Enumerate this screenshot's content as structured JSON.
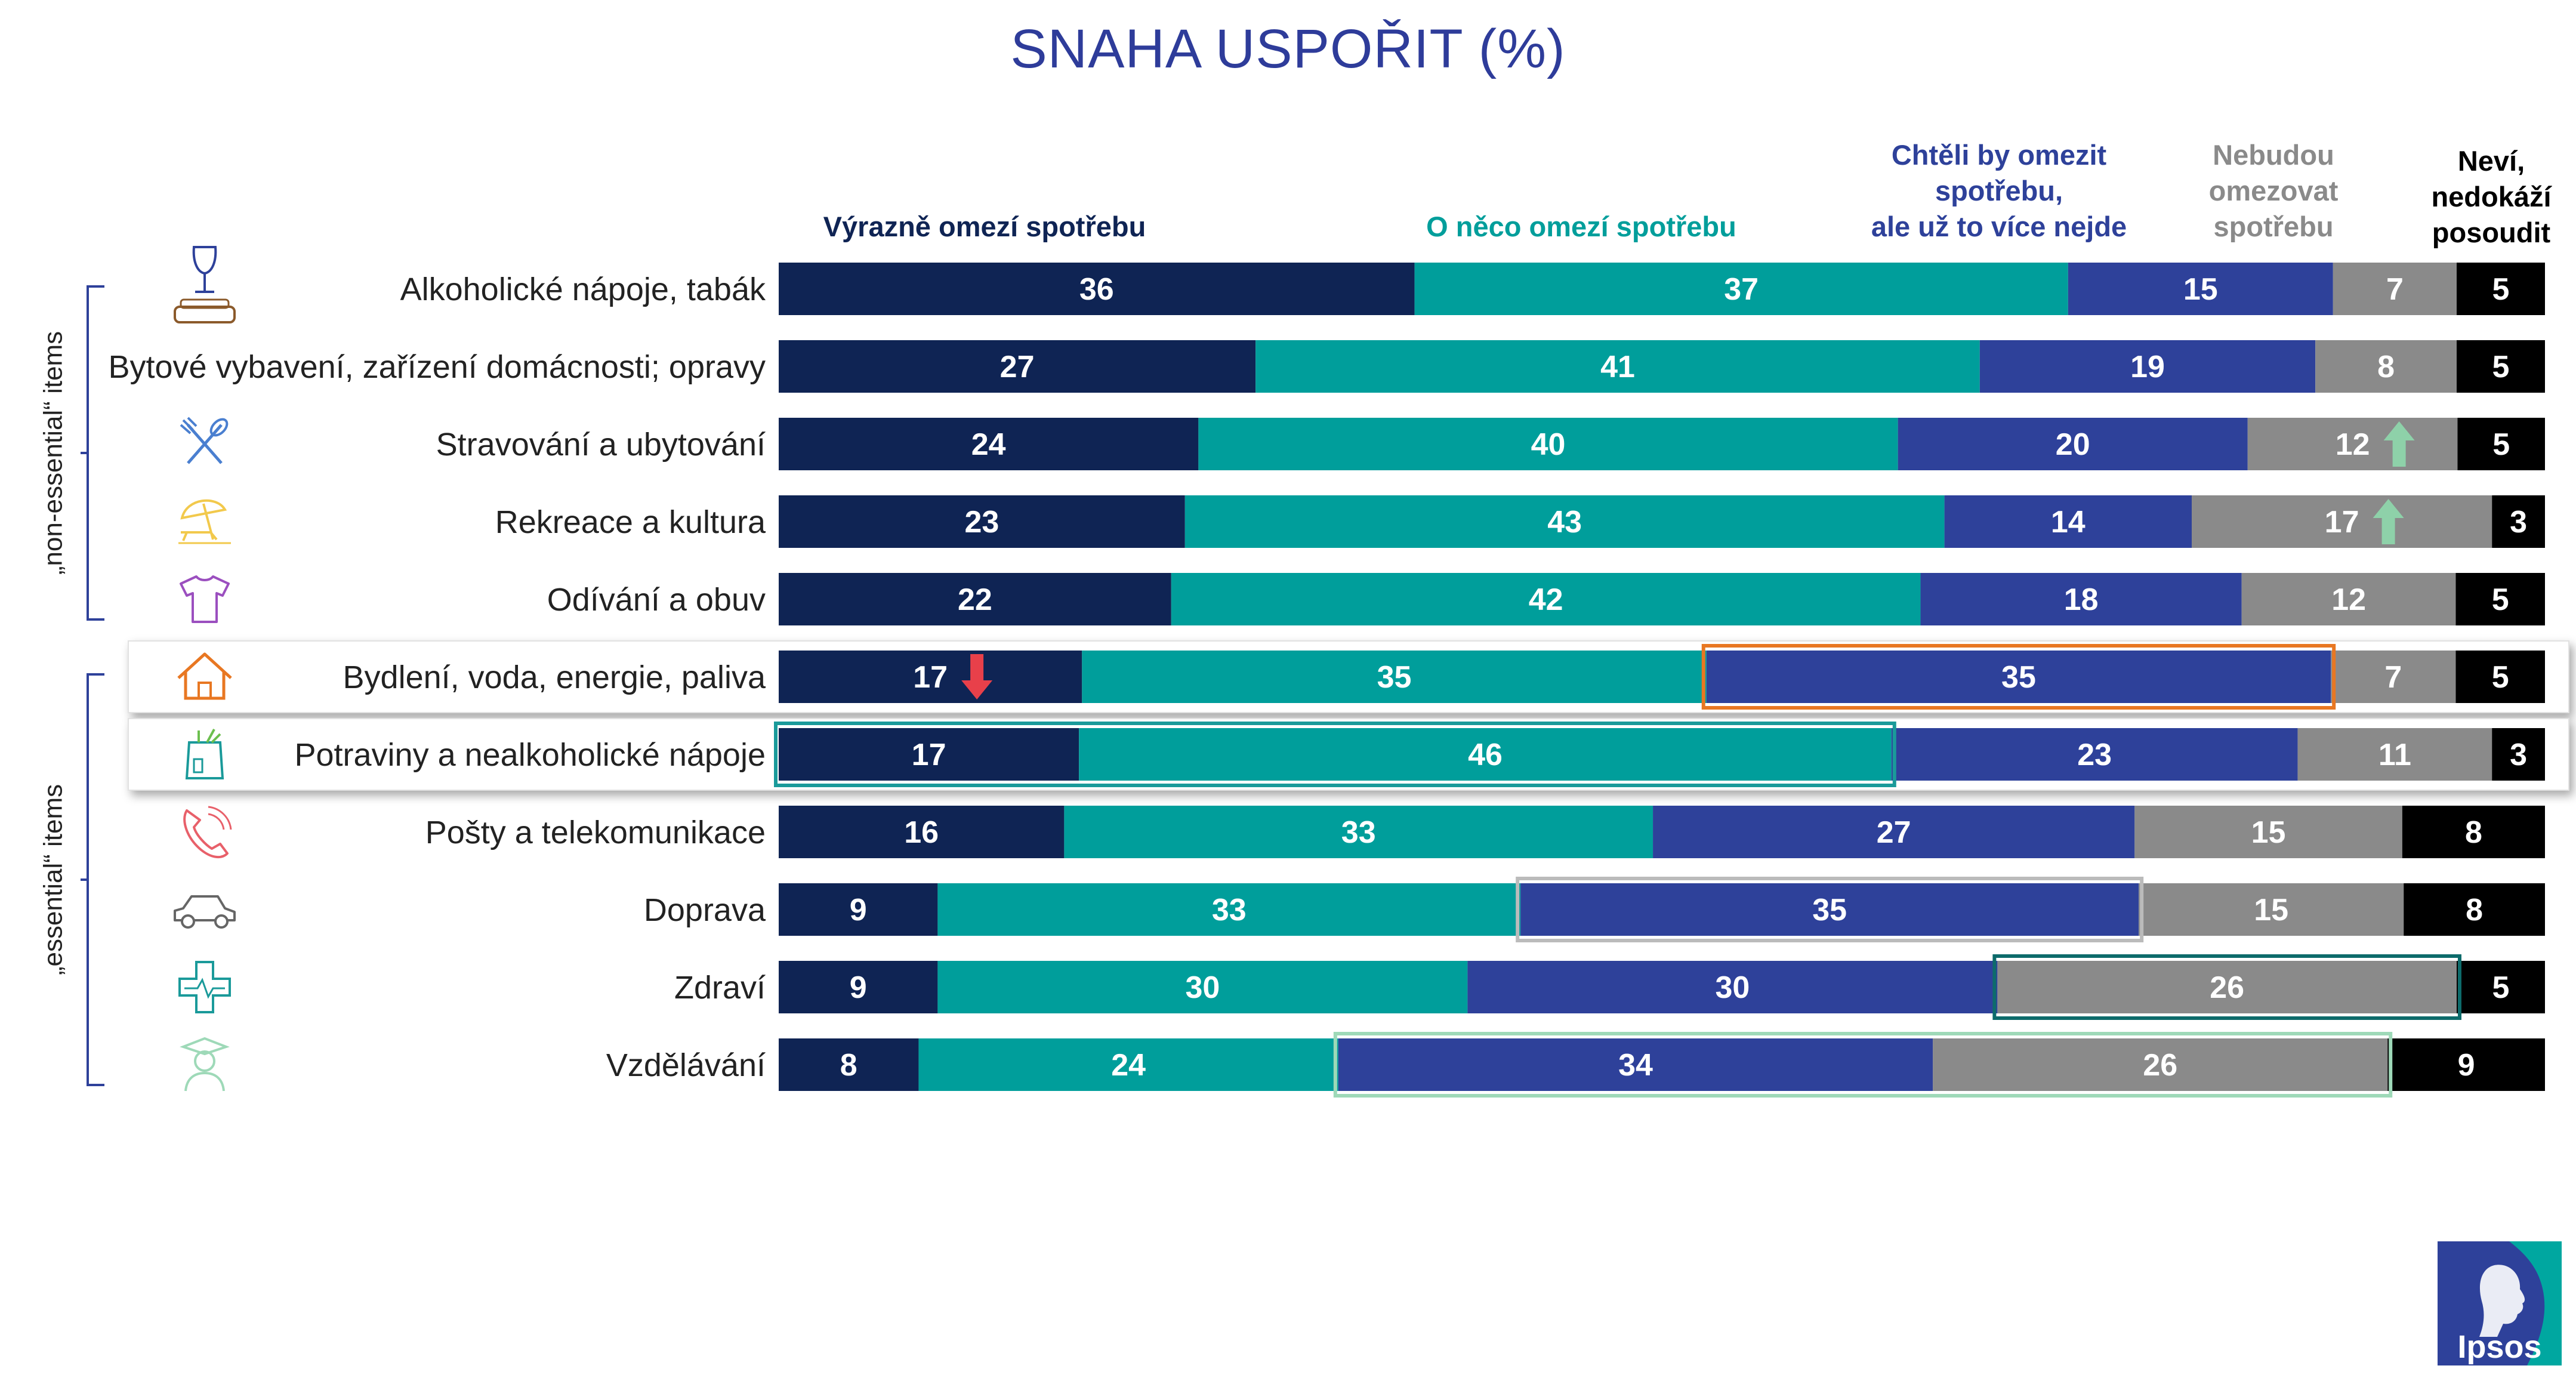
{
  "chart_data": {
    "type": "bar",
    "orientation": "horizontal",
    "stacked": true,
    "title": "SNAHA USPOŘIT (%)",
    "categories": [
      "Alkoholické nápoje, tabák",
      "Bytové vybavení, zařízení domácnosti; opravy",
      "Stravování a ubytování",
      "Rekreace a kultura",
      "Odívání a obuv",
      "Bydlení, voda, energie, paliva",
      "Potraviny a nealkoholické nápoje",
      "Pošty a telekomunikace",
      "Doprava",
      "Zdraví",
      "Vzdělávání"
    ],
    "series": [
      {
        "name": "Výrazně omezí spotřebu",
        "color": "#0F2454",
        "values": [
          36,
          27,
          24,
          23,
          22,
          17,
          17,
          16,
          9,
          9,
          8
        ]
      },
      {
        "name": "O něco omezí spotřebu",
        "color": "#009E9B",
        "values": [
          37,
          41,
          40,
          43,
          42,
          35,
          46,
          33,
          33,
          30,
          24
        ]
      },
      {
        "name": "Chtěli by omezit spotřebu, ale už to více nejde",
        "color": "#2E419A",
        "values": [
          15,
          19,
          20,
          14,
          18,
          35,
          23,
          27,
          35,
          30,
          34
        ]
      },
      {
        "name": "Nebudou omezovat spotřebu",
        "color": "#8A8A8A",
        "values": [
          7,
          8,
          12,
          17,
          12,
          7,
          11,
          15,
          15,
          26,
          26
        ]
      },
      {
        "name": "Neví, nedokáží posoudit",
        "color": "#000000",
        "values": [
          5,
          5,
          5,
          3,
          5,
          5,
          3,
          8,
          8,
          5,
          9
        ]
      }
    ],
    "xlim": [
      0,
      100
    ],
    "legend_position": "top",
    "groups": [
      {
        "label": "„non-essential“ items",
        "from": 0,
        "to": 4
      },
      {
        "label": "„essential“ items",
        "from": 5,
        "to": 10
      }
    ],
    "icons": [
      "wine-glass-icon",
      "sofa-icon",
      "cutlery-icon",
      "beach-umbrella-icon",
      "tshirt-icon",
      "house-icon",
      "grocery-bag-icon",
      "phone-icon",
      "car-icon",
      "medical-cross-icon",
      "graduate-icon"
    ],
    "arrows": [
      {
        "row": 2,
        "series": 3,
        "direction": "up",
        "color": "#8ED1A9"
      },
      {
        "row": 3,
        "series": 3,
        "direction": "up",
        "color": "#8ED1A9"
      },
      {
        "row": 5,
        "series": 0,
        "direction": "down",
        "color": "#E8404A"
      }
    ],
    "highlights": [
      {
        "row": 5,
        "series": [
          2
        ],
        "color": "#E87722"
      },
      {
        "row": 6,
        "series": [
          0,
          1
        ],
        "color": "#1A9A9A"
      },
      {
        "row": 8,
        "series": [
          2
        ],
        "color": "#BBBBBB"
      },
      {
        "row": 9,
        "series": [
          3
        ],
        "color": "#0D6B6B"
      },
      {
        "row": 10,
        "series": [
          2,
          3
        ],
        "color": "#9ED9B8"
      }
    ],
    "row_emphasis": [
      5,
      6
    ]
  },
  "legend_labels": {
    "s1": "Výrazně omezí spotřebu",
    "s2": "O něco omezí spotřebu",
    "s3a": "Chtěli by omezit",
    "s3b": "spotřebu,",
    "s3c": "ale už to více nejde",
    "s4a": "Nebudou",
    "s4b": "omezovat",
    "s4c": "spotřebu",
    "s5a": "Neví,",
    "s5b": "nedokáží",
    "s5c": "posoudit"
  },
  "logo": {
    "text": "Ipsos",
    "colors": [
      "#2E419A",
      "#00A7A0"
    ]
  }
}
